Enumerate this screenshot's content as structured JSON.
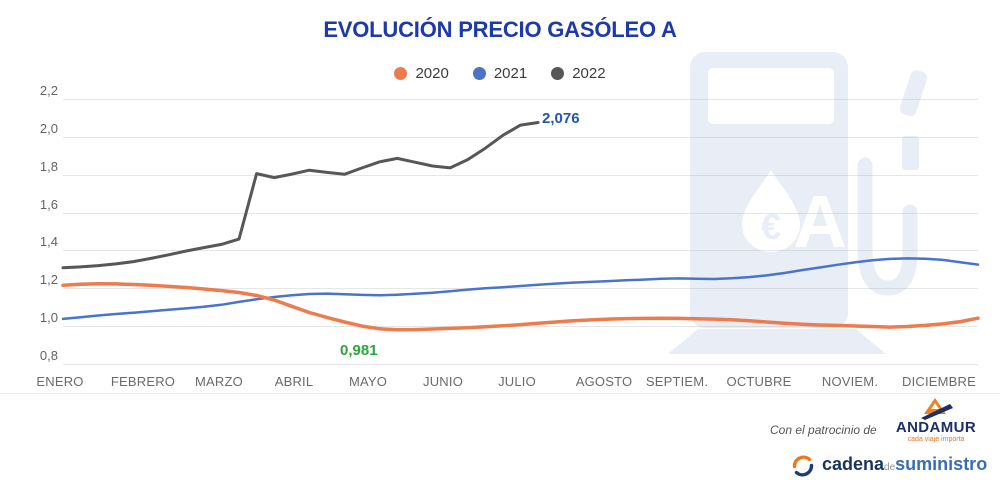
{
  "title": {
    "text": "EVOLUCIÓN PRECIO GASÓLEO A",
    "color": "#1c3aa8"
  },
  "legend": [
    {
      "label": "2020",
      "color": "#ec7c4e"
    },
    {
      "label": "2021",
      "color": "#4a74c8"
    },
    {
      "label": "2022",
      "color": "#575757"
    }
  ],
  "chart_data": {
    "type": "line",
    "title": "EVOLUCIÓN PRECIO GASÓLEO A",
    "x_unit": "week",
    "categories": [
      "ENERO",
      "FEBRERO",
      "MARZO",
      "ABRIL",
      "MAYO",
      "JUNIO",
      "JULIO",
      "AGOSTO",
      "SEPTIEM.",
      "OCTUBRE",
      "NOVIEM.",
      "DICIEMBRE"
    ],
    "ylim": [
      0.8,
      2.2
    ],
    "grid": "horizontal",
    "legend_position": "top",
    "yticks": [
      {
        "value": 2.2,
        "label": "2,2"
      },
      {
        "value": 2.0,
        "label": "2,0"
      },
      {
        "value": 1.8,
        "label": "1,8"
      },
      {
        "value": 1.6,
        "label": "1,6"
      },
      {
        "value": 1.4,
        "label": "1,4"
      },
      {
        "value": 1.2,
        "label": "1,2"
      },
      {
        "value": 1.0,
        "label": "1,0"
      },
      {
        "value": 0.8,
        "label": "0,8"
      }
    ],
    "series": [
      {
        "name": "2020",
        "color": "#ec7c4e",
        "values": [
          1.216,
          1.221,
          1.224,
          1.223,
          1.22,
          1.216,
          1.21,
          1.204,
          1.196,
          1.188,
          1.178,
          1.162,
          1.138,
          1.105,
          1.072,
          1.046,
          1.022,
          1.0,
          0.986,
          0.981,
          0.982,
          0.985,
          0.988,
          0.992,
          0.997,
          1.002,
          1.008,
          1.015,
          1.022,
          1.028,
          1.033,
          1.037,
          1.04,
          1.041,
          1.042,
          1.041,
          1.039,
          1.037,
          1.034,
          1.029,
          1.022,
          1.015,
          1.01,
          1.006,
          1.004,
          1.001,
          0.998,
          0.995,
          0.998,
          1.004,
          1.012,
          1.024,
          1.042
        ]
      },
      {
        "name": "2021",
        "color": "#4a74c8",
        "values": [
          1.038,
          1.047,
          1.056,
          1.064,
          1.071,
          1.079,
          1.087,
          1.094,
          1.102,
          1.113,
          1.128,
          1.142,
          1.154,
          1.163,
          1.17,
          1.172,
          1.169,
          1.165,
          1.163,
          1.166,
          1.171,
          1.176,
          1.184,
          1.193,
          1.2,
          1.206,
          1.212,
          1.219,
          1.225,
          1.23,
          1.234,
          1.238,
          1.242,
          1.246,
          1.25,
          1.252,
          1.25,
          1.249,
          1.253,
          1.259,
          1.268,
          1.281,
          1.296,
          1.31,
          1.324,
          1.337,
          1.348,
          1.355,
          1.358,
          1.356,
          1.35,
          1.338,
          1.325
        ]
      },
      {
        "name": "2022",
        "color": "#575757",
        "values": [
          1.308,
          1.313,
          1.32,
          1.329,
          1.341,
          1.358,
          1.377,
          1.397,
          1.415,
          1.432,
          1.46,
          1.806,
          1.785,
          1.803,
          1.824,
          1.812,
          1.802,
          1.836,
          1.868,
          1.886,
          1.866,
          1.846,
          1.836,
          1.88,
          1.94,
          2.008,
          2.062,
          2.076
        ]
      }
    ],
    "annotations": [
      {
        "text": "2,076",
        "series": "2022",
        "value": 2.076,
        "color": "#2456a8"
      },
      {
        "text": "0,981",
        "series": "2020",
        "value": 0.981,
        "color": "#2ea43c"
      }
    ]
  },
  "watermark": {
    "icon": "fuel-pump-icon",
    "euro": "€",
    "letter": "A",
    "color": "#e9edf6"
  },
  "sponsor": {
    "prefix": "Con el patrocinio de",
    "brand": "ANDAMUR",
    "tagline": "cada viaje importa"
  },
  "publisher": {
    "word1": "cadena",
    "word2": "de",
    "word3": "suministro"
  }
}
